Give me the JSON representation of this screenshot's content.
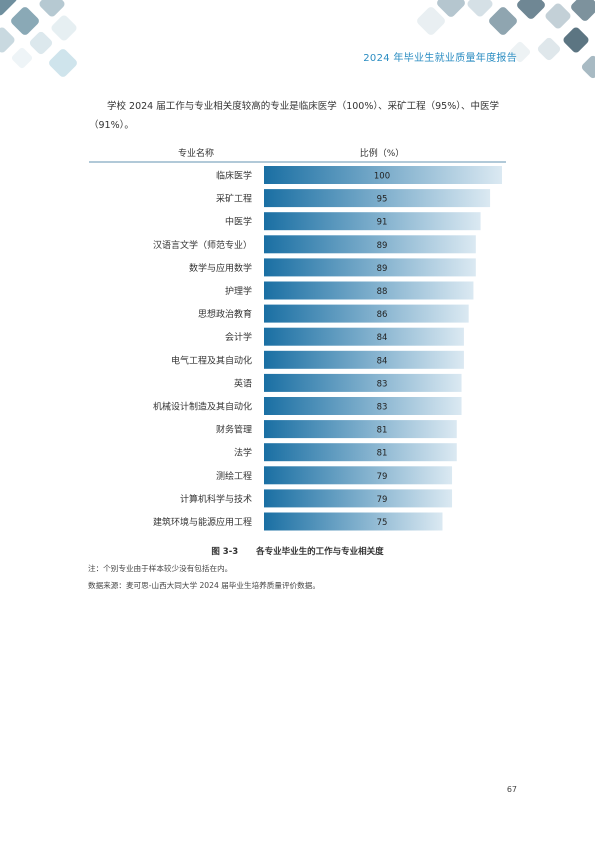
{
  "header": {
    "title": "2024 年毕业生就业质量年度报告"
  },
  "intro": {
    "text": "学校 2024 届工作与专业相关度较高的专业是临床医学（100%）、采矿工程（95%）、中医学（91%）。"
  },
  "chart_data": {
    "type": "bar",
    "orientation": "horizontal",
    "xlabel": "专业名称",
    "ylabel": "比例（%）",
    "xlim": [
      0,
      100
    ],
    "categories": [
      "临床医学",
      "采矿工程",
      "中医学",
      "汉语言文学（师范专业）",
      "数学与应用数学",
      "护理学",
      "思想政治教育",
      "会计学",
      "电气工程及其自动化",
      "英语",
      "机械设计制造及其自动化",
      "财务管理",
      "法学",
      "测绘工程",
      "计算机科学与技术",
      "建筑环境与能源应用工程"
    ],
    "values": [
      100,
      95,
      91,
      89,
      89,
      88,
      86,
      84,
      84,
      83,
      83,
      81,
      81,
      79,
      79,
      75
    ],
    "bar_gradient": [
      "#1a6fa3",
      "#dbe9f2"
    ]
  },
  "figure": {
    "number": "图 3-3",
    "title": "各专业毕业生的工作与专业相关度"
  },
  "notes": {
    "note1": "注：个别专业由于样本较少没有包括在内。",
    "note2": "数据来源：麦可思-山西大同大学 2024 届毕业生培养质量评价数据。"
  },
  "page": {
    "number": "67"
  }
}
